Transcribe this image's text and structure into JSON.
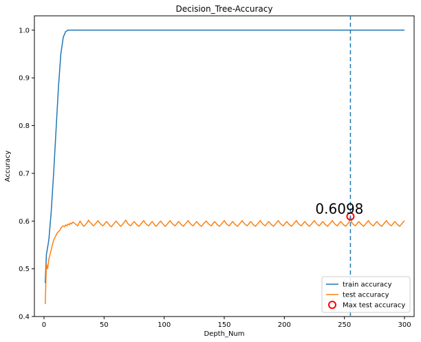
{
  "chart_data": {
    "type": "line",
    "title": "Decision_Tree-Accuracy",
    "xlabel": "Depth_Num",
    "ylabel": "Accuracy",
    "xlim": [
      -8,
      308
    ],
    "ylim": [
      0.4,
      1.03
    ],
    "x_ticks": [
      0,
      50,
      100,
      150,
      200,
      250,
      300
    ],
    "y_ticks": [
      0.4,
      0.5,
      0.6,
      0.7,
      0.8,
      0.9,
      1.0
    ],
    "x_tick_labels": [
      "0",
      "50",
      "100",
      "150",
      "200",
      "250",
      "300"
    ],
    "y_tick_labels": [
      "0.4",
      "0.5",
      "0.6",
      "0.7",
      "0.8",
      "0.9",
      "1.0"
    ],
    "grid": false,
    "legend_position": "lower-right",
    "series": [
      {
        "name": "train accuracy",
        "color": "#1f77b4",
        "x": [
          1,
          2,
          4,
          6,
          8,
          10,
          12,
          14,
          16,
          18,
          20,
          22,
          300
        ],
        "y": [
          0.47,
          0.53,
          0.56,
          0.62,
          0.7,
          0.79,
          0.88,
          0.95,
          0.985,
          0.997,
          1.0,
          1.0,
          1.0
        ]
      },
      {
        "name": "test accuracy",
        "color": "#ff7f0e",
        "x": [
          1,
          2,
          3,
          4,
          5,
          6,
          7,
          8,
          9,
          10,
          11,
          12,
          13,
          14,
          15,
          16,
          17,
          18,
          19,
          20,
          21,
          22,
          23,
          24,
          25,
          26,
          27,
          28,
          29,
          30,
          31,
          32,
          33,
          34,
          35,
          36,
          37,
          38,
          39,
          40,
          41,
          42,
          43,
          44,
          45,
          46,
          47,
          48,
          49,
          50,
          51,
          52,
          53,
          54,
          55,
          56,
          57,
          58,
          59,
          60,
          61,
          62,
          63,
          64,
          65,
          66,
          67,
          68,
          69,
          70,
          71,
          72,
          73,
          74,
          75,
          76,
          77,
          78,
          79,
          80,
          81,
          82,
          83,
          84,
          85,
          86,
          87,
          88,
          89,
          90,
          91,
          92,
          93,
          94,
          95,
          96,
          97,
          98,
          99,
          100,
          101,
          102,
          103,
          104,
          105,
          106,
          107,
          108,
          109,
          110,
          111,
          112,
          113,
          114,
          115,
          116,
          117,
          118,
          119,
          120,
          121,
          122,
          123,
          124,
          125,
          126,
          127,
          128,
          129,
          130,
          131,
          132,
          133,
          134,
          135,
          136,
          137,
          138,
          139,
          140,
          141,
          142,
          143,
          144,
          145,
          146,
          147,
          148,
          149,
          150,
          151,
          152,
          153,
          154,
          155,
          156,
          157,
          158,
          159,
          160,
          161,
          162,
          163,
          164,
          165,
          166,
          167,
          168,
          169,
          170,
          171,
          172,
          173,
          174,
          175,
          176,
          177,
          178,
          179,
          180,
          181,
          182,
          183,
          184,
          185,
          186,
          187,
          188,
          189,
          190,
          191,
          192,
          193,
          194,
          195,
          196,
          197,
          198,
          199,
          200,
          201,
          202,
          203,
          204,
          205,
          206,
          207,
          208,
          209,
          210,
          211,
          212,
          213,
          214,
          215,
          216,
          217,
          218,
          219,
          220,
          221,
          222,
          223,
          224,
          225,
          226,
          227,
          228,
          229,
          230,
          231,
          232,
          233,
          234,
          235,
          236,
          237,
          238,
          239,
          240,
          241,
          242,
          243,
          244,
          245,
          246,
          247,
          248,
          249,
          250,
          251,
          252,
          253,
          254,
          255,
          256,
          257,
          258,
          259,
          260,
          261,
          262,
          263,
          264,
          265,
          266,
          267,
          268,
          269,
          270,
          271,
          272,
          273,
          274,
          275,
          276,
          277,
          278,
          279,
          280,
          281,
          282,
          283,
          284,
          285,
          286,
          287,
          288,
          289,
          290,
          291,
          292,
          293,
          294,
          295,
          296,
          297,
          298,
          299,
          300
        ],
        "y": [
          0.426,
          0.51,
          0.5,
          0.52,
          0.53,
          0.54,
          0.55,
          0.56,
          0.565,
          0.57,
          0.575,
          0.578,
          0.58,
          0.585,
          0.588,
          0.59,
          0.588,
          0.592,
          0.59,
          0.594,
          0.592,
          0.596,
          0.594,
          0.598,
          0.596,
          0.594,
          0.592,
          0.59,
          0.595,
          0.6,
          0.596,
          0.592,
          0.589,
          0.591,
          0.594,
          0.597,
          0.602,
          0.598,
          0.596,
          0.593,
          0.59,
          0.592,
          0.595,
          0.598,
          0.601,
          0.597,
          0.594,
          0.592,
          0.59,
          0.593,
          0.596,
          0.599,
          0.596,
          0.593,
          0.59,
          0.588,
          0.591,
          0.594,
          0.597,
          0.6,
          0.597,
          0.594,
          0.591,
          0.589,
          0.592,
          0.595,
          0.598,
          0.602,
          0.598,
          0.594,
          0.592,
          0.59,
          0.593,
          0.596,
          0.599,
          0.596,
          0.593,
          0.591,
          0.589,
          0.592,
          0.595,
          0.598,
          0.601,
          0.597,
          0.594,
          0.592,
          0.59,
          0.593,
          0.596,
          0.599,
          0.596,
          0.592,
          0.589,
          0.591,
          0.594,
          0.597,
          0.6,
          0.597,
          0.594,
          0.591,
          0.589,
          0.592,
          0.595,
          0.598,
          0.601,
          0.597,
          0.594,
          0.592,
          0.59,
          0.593,
          0.596,
          0.599,
          0.596,
          0.593,
          0.591,
          0.589,
          0.592,
          0.595,
          0.598,
          0.601,
          0.597,
          0.594,
          0.592,
          0.59,
          0.593,
          0.596,
          0.599,
          0.596,
          0.593,
          0.591,
          0.589,
          0.592,
          0.595,
          0.598,
          0.6,
          0.597,
          0.594,
          0.592,
          0.59,
          0.593,
          0.596,
          0.599,
          0.596,
          0.593,
          0.591,
          0.589,
          0.592,
          0.595,
          0.598,
          0.601,
          0.597,
          0.594,
          0.592,
          0.59,
          0.593,
          0.596,
          0.599,
          0.596,
          0.593,
          0.591,
          0.589,
          0.592,
          0.595,
          0.598,
          0.601,
          0.597,
          0.594,
          0.592,
          0.59,
          0.593,
          0.596,
          0.599,
          0.596,
          0.593,
          0.591,
          0.589,
          0.592,
          0.595,
          0.598,
          0.601,
          0.597,
          0.594,
          0.592,
          0.59,
          0.593,
          0.596,
          0.599,
          0.596,
          0.593,
          0.591,
          0.589,
          0.592,
          0.595,
          0.598,
          0.601,
          0.597,
          0.594,
          0.592,
          0.59,
          0.593,
          0.596,
          0.599,
          0.596,
          0.593,
          0.591,
          0.589,
          0.592,
          0.595,
          0.598,
          0.601,
          0.597,
          0.594,
          0.592,
          0.59,
          0.593,
          0.596,
          0.599,
          0.596,
          0.593,
          0.591,
          0.589,
          0.592,
          0.595,
          0.598,
          0.601,
          0.597,
          0.594,
          0.592,
          0.59,
          0.593,
          0.596,
          0.599,
          0.596,
          0.593,
          0.591,
          0.589,
          0.592,
          0.595,
          0.598,
          0.601,
          0.597,
          0.594,
          0.592,
          0.59,
          0.593,
          0.596,
          0.599,
          0.596,
          0.593,
          0.591,
          0.589,
          0.592,
          0.595,
          0.598,
          0.6098,
          0.597,
          0.594,
          0.592,
          0.59,
          0.593,
          0.596,
          0.599,
          0.596,
          0.593,
          0.591,
          0.589,
          0.592,
          0.595,
          0.598,
          0.601,
          0.597,
          0.594,
          0.592,
          0.59,
          0.593,
          0.596,
          0.599,
          0.596,
          0.593,
          0.591,
          0.589,
          0.592,
          0.595,
          0.598,
          0.601,
          0.597,
          0.594,
          0.592,
          0.59,
          0.593,
          0.596,
          0.599,
          0.596,
          0.593,
          0.591,
          0.589,
          0.592,
          0.595,
          0.598,
          0.601
        ]
      }
    ],
    "max_test": {
      "name": "Max test accuracy",
      "x": 255,
      "y": 0.6098,
      "label": "0.6098",
      "marker_color": "#ff0000",
      "line_color": "#1f77b4"
    }
  }
}
